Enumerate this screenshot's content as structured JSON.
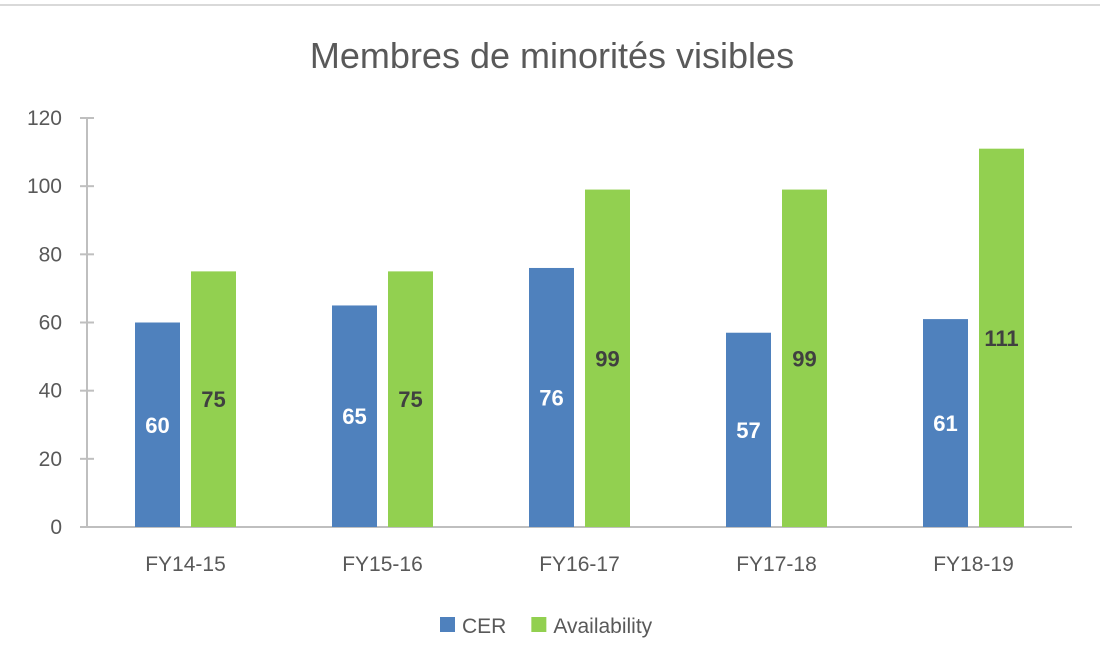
{
  "chart_data": {
    "type": "bar",
    "title": "Membres de minorités visibles",
    "categories": [
      "FY14-15",
      "FY15-16",
      "FY16-17",
      "FY17-18",
      "FY18-19"
    ],
    "series": [
      {
        "name": "CER",
        "values": [
          60,
          65,
          76,
          57,
          61
        ],
        "color": "#4f81bd",
        "label_color": "#ffffff"
      },
      {
        "name": "Availability",
        "values": [
          75,
          75,
          99,
          99,
          111
        ],
        "color": "#92d050",
        "label_color": "#404040"
      }
    ],
    "ylim": [
      0,
      120
    ],
    "yticks": [
      "0",
      "20",
      "40",
      "60",
      "80",
      "100",
      "120"
    ],
    "xlabel": "",
    "ylabel": "",
    "grid": false,
    "legend": "bottom",
    "data_labels": true
  }
}
